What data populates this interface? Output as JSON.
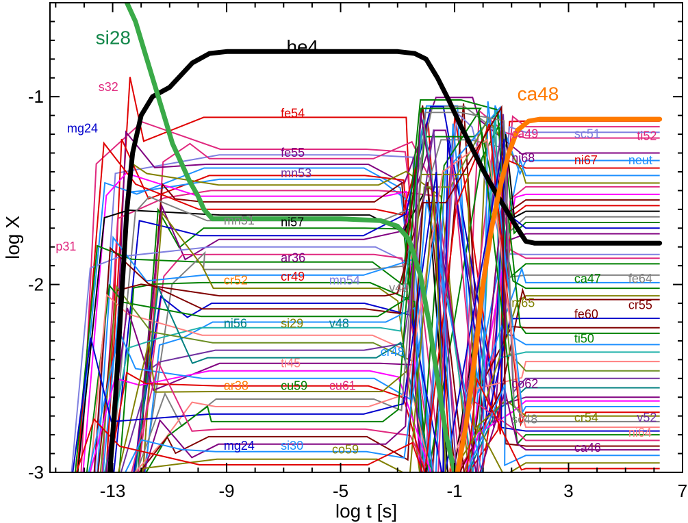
{
  "chart_data": {
    "type": "line",
    "title": "",
    "xlabel": "log t [s]",
    "ylabel": "log X",
    "xlim": [
      -15.2,
      7
    ],
    "ylim": [
      -3,
      -0.5
    ],
    "xticks": [
      -13,
      -9,
      -5,
      -1,
      3,
      7
    ],
    "xtick_labels": [
      "-13",
      "-9",
      "-5",
      "-1",
      "3",
      "7"
    ],
    "yticks": [
      -3,
      -2,
      -1
    ],
    "ytick_labels": [
      "-3",
      "-2",
      "-1"
    ],
    "emphasized_series": [
      {
        "name": "he4",
        "color": "#000000",
        "x": [
          -13.1,
          -12.9,
          -12.7,
          -12.5,
          -12.3,
          -12.0,
          -11.6,
          -11.0,
          -10.2,
          -9.6,
          -9.0,
          -5.0,
          -3.0,
          -2.4,
          -2.0,
          -1.6,
          -1.2,
          -0.8,
          -0.4,
          0.0,
          0.4,
          0.8,
          1.2,
          1.5,
          1.8,
          6.2
        ],
        "y": [
          -3.0,
          -2.6,
          -2.1,
          -1.6,
          -1.3,
          -1.1,
          -1.0,
          -0.95,
          -0.82,
          -0.77,
          -0.76,
          -0.76,
          -0.76,
          -0.77,
          -0.8,
          -0.9,
          -1.02,
          -1.15,
          -1.27,
          -1.39,
          -1.5,
          -1.6,
          -1.7,
          -1.77,
          -1.78,
          -1.78
        ]
      },
      {
        "name": "si28",
        "color": "#3aaa48",
        "x": [
          -12.5,
          -12.2,
          -11.8,
          -11.5,
          -11.2,
          -10.9,
          -10.6,
          -10.3,
          -10.0,
          -9.8,
          -9.5,
          -5.0,
          -3.6,
          -3.0,
          -2.6,
          -2.2,
          -1.9,
          -1.6,
          -1.3,
          -1.0
        ],
        "y": [
          -0.5,
          -0.6,
          -0.8,
          -0.95,
          -1.1,
          -1.25,
          -1.35,
          -1.45,
          -1.53,
          -1.6,
          -1.65,
          -1.65,
          -1.66,
          -1.69,
          -1.76,
          -1.95,
          -2.2,
          -2.5,
          -2.8,
          -3.0
        ]
      },
      {
        "name": "ca48",
        "color": "#ff7a00",
        "x": [
          -0.9,
          -0.6,
          -0.3,
          0.0,
          0.3,
          0.6,
          0.9,
          1.2,
          1.6,
          2.0,
          6.2
        ],
        "y": [
          -3.0,
          -2.75,
          -2.4,
          -2.0,
          -1.7,
          -1.48,
          -1.3,
          -1.18,
          -1.13,
          -1.12,
          -1.12
        ]
      }
    ],
    "labels": [
      {
        "text": "si28",
        "color": "#13874a",
        "x": -13.6,
        "y": -0.72,
        "size": "big"
      },
      {
        "text": "he4",
        "color": "#000000",
        "x": -6.9,
        "y": -0.77,
        "size": "big"
      },
      {
        "text": "ca48",
        "color": "#ff7a00",
        "x": 1.2,
        "y": -1.02,
        "size": "big"
      },
      {
        "text": "s32",
        "color": "#e0287e",
        "x": -13.5,
        "y": -0.97,
        "size": "small"
      },
      {
        "text": "mg24",
        "color": "#0000cc",
        "x": -14.6,
        "y": -1.19,
        "size": "small"
      },
      {
        "text": "p31",
        "color": "#e0287e",
        "x": -15.0,
        "y": -1.82,
        "size": "small"
      },
      {
        "text": "fe54",
        "color": "#e00000",
        "x": -7.1,
        "y": -1.11,
        "size": "small"
      },
      {
        "text": "fe55",
        "color": "#800080",
        "x": -7.1,
        "y": -1.32,
        "size": "small"
      },
      {
        "text": "mn53",
        "color": "#7030a0",
        "x": -7.1,
        "y": -1.43,
        "size": "small"
      },
      {
        "text": "mn51",
        "color": "#808080",
        "x": -9.1,
        "y": -1.68,
        "size": "small"
      },
      {
        "text": "ni57",
        "color": "#000000",
        "x": -7.1,
        "y": -1.69,
        "size": "small"
      },
      {
        "text": "ar36",
        "color": "#800080",
        "x": -7.1,
        "y": -1.88,
        "size": "small"
      },
      {
        "text": "cr52",
        "color": "#ff7a00",
        "x": -9.1,
        "y": -2.0,
        "size": "small"
      },
      {
        "text": "cr49",
        "color": "#e00000",
        "x": -7.1,
        "y": -1.98,
        "size": "small"
      },
      {
        "text": "mn54",
        "color": "#8080e0",
        "x": -5.4,
        "y": -2.0,
        "size": "small"
      },
      {
        "text": "v49",
        "color": "#808080",
        "x": -3.3,
        "y": -2.04,
        "size": "small"
      },
      {
        "text": "ni56",
        "color": "#008080",
        "x": -9.1,
        "y": -2.23,
        "size": "small"
      },
      {
        "text": "si29",
        "color": "#808000",
        "x": -7.1,
        "y": -2.23,
        "size": "small"
      },
      {
        "text": "v48",
        "color": "#008080",
        "x": -5.4,
        "y": -2.23,
        "size": "small"
      },
      {
        "text": "cr48",
        "color": "#1e90ff",
        "x": -3.6,
        "y": -2.38,
        "size": "small"
      },
      {
        "text": "ti45",
        "color": "#ff8080",
        "x": -7.1,
        "y": -2.44,
        "size": "small"
      },
      {
        "text": "ar38",
        "color": "#ff7a00",
        "x": -9.1,
        "y": -2.56,
        "size": "small"
      },
      {
        "text": "cu59",
        "color": "#008000",
        "x": -7.1,
        "y": -2.56,
        "size": "small"
      },
      {
        "text": "cu61",
        "color": "#e0287e",
        "x": -5.4,
        "y": -2.56,
        "size": "small"
      },
      {
        "text": "mg24",
        "color": "#0000cc",
        "x": -9.1,
        "y": -2.88,
        "size": "small"
      },
      {
        "text": "si30",
        "color": "#1e90ff",
        "x": -7.1,
        "y": -2.88,
        "size": "small"
      },
      {
        "text": "co59",
        "color": "#808000",
        "x": -5.3,
        "y": -2.9,
        "size": "small"
      },
      {
        "text": "ca49",
        "color": "#e0287e",
        "x": 1.0,
        "y": -1.22,
        "size": "small"
      },
      {
        "text": "sc51",
        "color": "#8080e0",
        "x": 3.2,
        "y": -1.22,
        "size": "small"
      },
      {
        "text": "ti52",
        "color": "#e0287e",
        "x": 5.4,
        "y": -1.23,
        "size": "small"
      },
      {
        "text": "ni68",
        "color": "#800080",
        "x": 1.0,
        "y": -1.35,
        "size": "small"
      },
      {
        "text": "ni67",
        "color": "#e00000",
        "x": 3.2,
        "y": -1.36,
        "size": "small"
      },
      {
        "text": "neut",
        "color": "#1e90ff",
        "x": 5.1,
        "y": -1.36,
        "size": "small"
      },
      {
        "text": "ca47",
        "color": "#008000",
        "x": 3.2,
        "y": -1.99,
        "size": "small"
      },
      {
        "text": "fe64",
        "color": "#808080",
        "x": 5.1,
        "y": -1.99,
        "size": "small"
      },
      {
        "text": "ni65",
        "color": "#808000",
        "x": 1.0,
        "y": -2.12,
        "size": "small"
      },
      {
        "text": "cr55",
        "color": "#800000",
        "x": 5.1,
        "y": -2.13,
        "size": "small"
      },
      {
        "text": "fe60",
        "color": "#800000",
        "x": 3.2,
        "y": -2.18,
        "size": "small"
      },
      {
        "text": "ti50",
        "color": "#008000",
        "x": 3.2,
        "y": -2.31,
        "size": "small"
      },
      {
        "text": "co62",
        "color": "#800080",
        "x": 1.0,
        "y": -2.55,
        "size": "small"
      },
      {
        "text": "sc48",
        "color": "#808080",
        "x": 1.0,
        "y": -2.74,
        "size": "small"
      },
      {
        "text": "cr54",
        "color": "#808000",
        "x": 3.2,
        "y": -2.73,
        "size": "small"
      },
      {
        "text": "v52",
        "color": "#7030a0",
        "x": 5.4,
        "y": -2.73,
        "size": "small"
      },
      {
        "text": "ni64",
        "color": "#ff8080",
        "x": 5.1,
        "y": -2.81,
        "size": "small"
      },
      {
        "text": "ca46",
        "color": "#800080",
        "x": 3.2,
        "y": -2.89,
        "size": "small"
      }
    ],
    "background_series_palette": [
      "#e00000",
      "#0000cc",
      "#008000",
      "#800080",
      "#ff7a00",
      "#1e90ff",
      "#e0287e",
      "#808000",
      "#008080",
      "#800000",
      "#808080",
      "#8080e0",
      "#7030a0",
      "#ff8080",
      "#000000",
      "#20b2aa",
      "#ff00ff",
      "#6b8e23"
    ],
    "background_series": [
      {
        "plateau": -1.11,
        "final": -1.13,
        "color": "#e00000"
      },
      {
        "plateau": -1.28,
        "final": -1.16,
        "color": "#e0287e"
      },
      {
        "plateau": -1.31,
        "final": -1.19,
        "color": "#8080e0"
      },
      {
        "plateau": -1.33,
        "final": -1.22,
        "color": "#e0287e"
      },
      {
        "plateau": -1.36,
        "final": -1.3,
        "color": "#800080"
      },
      {
        "plateau": -1.38,
        "final": -1.34,
        "color": "#1e90ff"
      },
      {
        "plateau": -1.42,
        "final": -1.38,
        "color": "#e00000"
      },
      {
        "plateau": -1.44,
        "final": -1.42,
        "color": "#1e90ff"
      },
      {
        "plateau": -1.47,
        "final": -1.46,
        "color": "#808000"
      },
      {
        "plateau": -1.5,
        "final": -1.48,
        "color": "#e0287e"
      },
      {
        "plateau": -1.53,
        "final": -1.52,
        "color": "#ff00ff"
      },
      {
        "plateau": -1.56,
        "final": -1.55,
        "color": "#800000"
      },
      {
        "plateau": -1.6,
        "final": -1.58,
        "color": "#e00000"
      },
      {
        "plateau": -1.63,
        "final": -1.61,
        "color": "#000000"
      },
      {
        "plateau": -1.66,
        "final": -1.64,
        "color": "#808080"
      },
      {
        "plateau": -1.7,
        "final": -1.67,
        "color": "#008000"
      },
      {
        "plateau": -1.74,
        "final": -1.7,
        "color": "#0000cc"
      },
      {
        "plateau": -1.76,
        "final": -1.73,
        "color": "#800080"
      },
      {
        "plateau": -1.8,
        "final": -1.84,
        "color": "#8080e0"
      },
      {
        "plateau": -1.84,
        "final": -1.86,
        "color": "#e0287e"
      },
      {
        "plateau": -1.88,
        "final": -1.89,
        "color": "#008000"
      },
      {
        "plateau": -1.92,
        "final": -1.95,
        "color": "#808080"
      },
      {
        "plateau": -1.95,
        "final": -1.99,
        "color": "#1e90ff"
      },
      {
        "plateau": -1.99,
        "final": -2.02,
        "color": "#008000"
      },
      {
        "plateau": -2.02,
        "final": -2.06,
        "color": "#808000"
      },
      {
        "plateau": -2.06,
        "final": -2.08,
        "color": "#800000"
      },
      {
        "plateau": -2.1,
        "final": -2.18,
        "color": "#0000cc"
      },
      {
        "plateau": -2.13,
        "final": -2.23,
        "color": "#800000"
      },
      {
        "plateau": -2.17,
        "final": -2.26,
        "color": "#008000"
      },
      {
        "plateau": -2.2,
        "final": -2.32,
        "color": "#1e90ff"
      },
      {
        "plateau": -2.23,
        "final": -2.36,
        "color": "#20b2aa"
      },
      {
        "plateau": -2.27,
        "final": -2.41,
        "color": "#ff8080"
      },
      {
        "plateau": -2.31,
        "final": -2.46,
        "color": "#6b8e23"
      },
      {
        "plateau": -2.35,
        "final": -2.5,
        "color": "#7030a0"
      },
      {
        "plateau": -2.39,
        "final": -2.55,
        "color": "#008080"
      },
      {
        "plateau": -2.42,
        "final": -2.6,
        "color": "#800080"
      },
      {
        "plateau": -2.46,
        "final": -2.62,
        "color": "#ff00ff"
      },
      {
        "plateau": -2.5,
        "final": -2.65,
        "color": "#1e90ff"
      },
      {
        "plateau": -2.54,
        "final": -2.68,
        "color": "#e00000"
      },
      {
        "plateau": -2.57,
        "final": -2.7,
        "color": "#808000"
      },
      {
        "plateau": -2.61,
        "final": -2.73,
        "color": "#808080"
      },
      {
        "plateau": -2.65,
        "final": -2.76,
        "color": "#ff8080"
      },
      {
        "plateau": -2.69,
        "final": -2.78,
        "color": "#0000cc"
      },
      {
        "plateau": -2.73,
        "final": -2.8,
        "color": "#008000"
      },
      {
        "plateau": -2.77,
        "final": -2.83,
        "color": "#e0287e"
      },
      {
        "plateau": -2.81,
        "final": -2.86,
        "color": "#800000"
      },
      {
        "plateau": -2.85,
        "final": -2.88,
        "color": "#800080"
      },
      {
        "plateau": -2.89,
        "final": -2.91,
        "color": "#1e90ff"
      },
      {
        "plateau": -2.93,
        "final": -2.95,
        "color": "#808000"
      },
      {
        "plateau": -2.96,
        "final": -2.98,
        "color": "#e00000"
      }
    ]
  }
}
